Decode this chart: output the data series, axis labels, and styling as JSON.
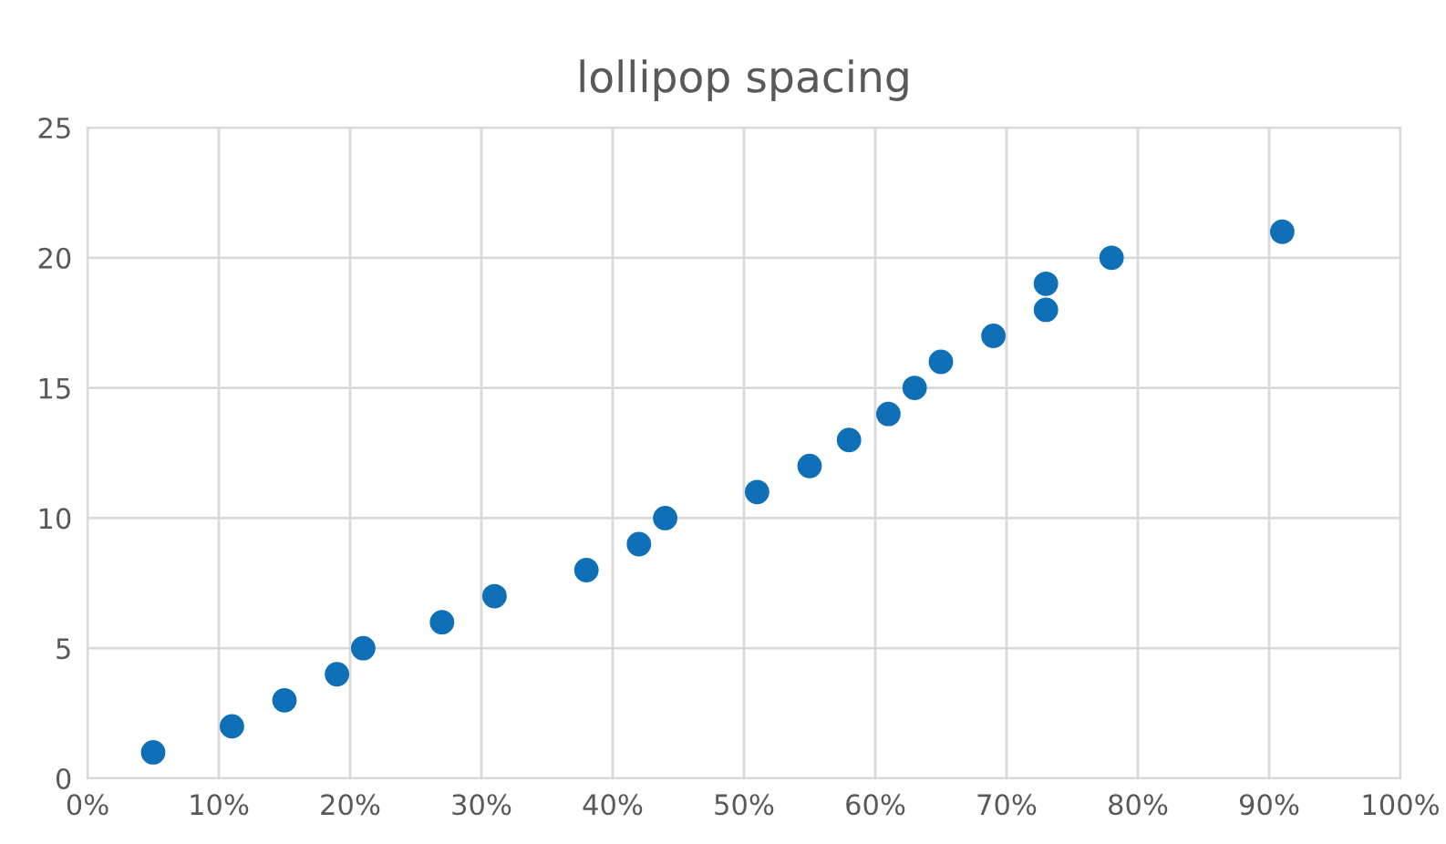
{
  "chart_data": {
    "type": "scatter",
    "title": "lollipop spacing",
    "series": [
      {
        "color": "#0f70b7",
        "x": [
          5,
          11,
          15,
          19,
          21,
          27,
          31,
          38,
          42,
          44,
          51,
          55,
          58,
          61,
          63,
          65,
          69,
          73,
          73,
          78,
          91
        ],
        "values": [
          1,
          2,
          3,
          4,
          5,
          6,
          7,
          8,
          9,
          10,
          11,
          12,
          13,
          14,
          15,
          16,
          17,
          18,
          19,
          20,
          21
        ]
      }
    ],
    "xlim": [
      0,
      100
    ],
    "xticks": [
      {
        "value": 0,
        "label": "0%"
      },
      {
        "value": 10,
        "label": "10%"
      },
      {
        "value": 20,
        "label": "20%"
      },
      {
        "value": 30,
        "label": "30%"
      },
      {
        "value": 40,
        "label": "40%"
      },
      {
        "value": 50,
        "label": "50%"
      },
      {
        "value": 60,
        "label": "60%"
      },
      {
        "value": 70,
        "label": "70%"
      },
      {
        "value": 80,
        "label": "80%"
      },
      {
        "value": 90,
        "label": "90%"
      },
      {
        "value": 100,
        "label": "100%"
      }
    ],
    "ylim": [
      0,
      25
    ],
    "yticks": [
      0,
      5,
      10,
      15,
      20,
      25
    ],
    "grid": true,
    "marker": "circle"
  }
}
